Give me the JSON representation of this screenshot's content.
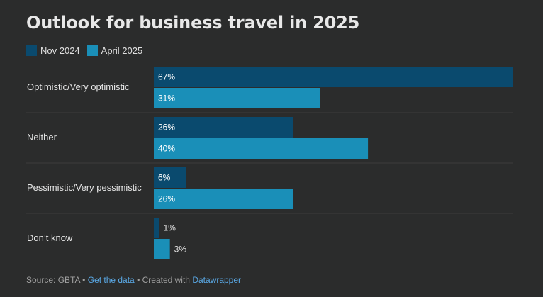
{
  "title": "Outlook for business travel in 2025",
  "colors": {
    "nov2024": "#0a4a6e",
    "apr2025": "#1a8fb8",
    "divider": "#3c3d3d",
    "bg": "#2b2c2c"
  },
  "legend": [
    {
      "label": "Nov 2024",
      "color": "#0a4a6e"
    },
    {
      "label": "April 2025",
      "color": "#1a8fb8"
    }
  ],
  "chart_data": {
    "type": "bar",
    "orientation": "horizontal",
    "categories": [
      "Optimistic/Very optimistic",
      "Neither",
      "Pessimistic/Very pessimistic",
      "Don’t know"
    ],
    "series": [
      {
        "name": "Nov 2024",
        "values": [
          67,
          26,
          6,
          1
        ],
        "labels": [
          "67%",
          "26%",
          "6%",
          "1%"
        ]
      },
      {
        "name": "April 2025",
        "values": [
          31,
          40,
          26,
          3
        ],
        "labels": [
          "31%",
          "40%",
          "26%",
          "3%"
        ]
      }
    ],
    "xlim": [
      0,
      67
    ],
    "grid": false
  },
  "footer": {
    "source": "Source: GBTA",
    "sep1": " • ",
    "get_data": "Get the data",
    "sep2": " • Created with ",
    "datawrapper": "Datawrapper"
  }
}
